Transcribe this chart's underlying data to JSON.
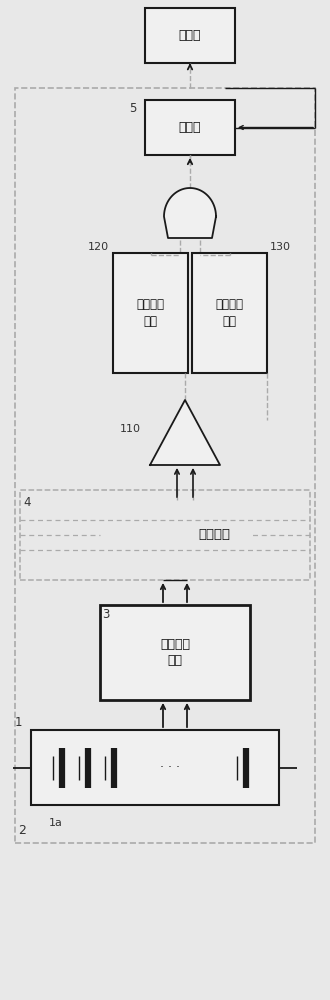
{
  "bg_color": "#e8e8e8",
  "line_color": "#1a1a1a",
  "box_fill": "#f0f0f0",
  "dash_color": "#aaaaaa",
  "fig_width": 3.3,
  "fig_height": 10.0,
  "labels": {
    "contactor": "接触器",
    "controller": "控制器",
    "unit1": "第一操作\n单元",
    "unit2": "第二操作\n单元",
    "insulation": "绮缘元件",
    "bms": "电池监控\n电路",
    "n1": "1",
    "n1a": "1a",
    "n2": "2",
    "n3": "3",
    "n4": "4",
    "n5": "5",
    "n110": "110",
    "n120": "120",
    "n130": "130"
  }
}
